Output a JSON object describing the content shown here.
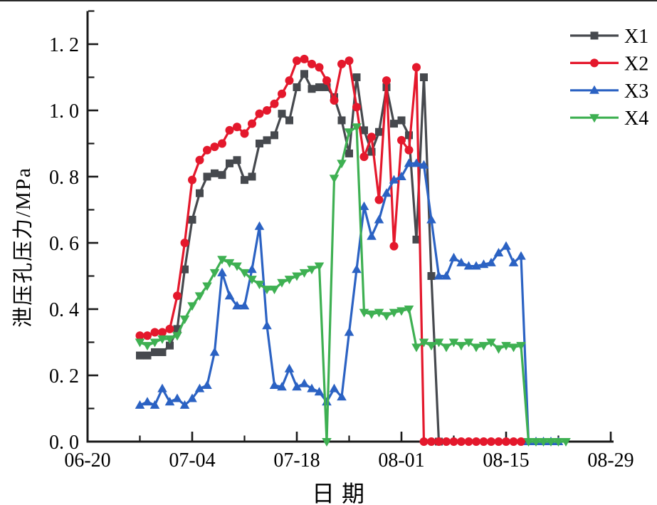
{
  "figure": {
    "background": "#ffffff",
    "axis_color": "#1a1a1a",
    "y_axis": {
      "title": "泄压孔压力/MPa",
      "tick_labels": [
        "0. 0",
        "0. 2",
        "0. 4",
        "0. 6",
        "0. 8",
        "1. 0",
        "1. 2"
      ],
      "min": 0,
      "max": 1.3,
      "major_step": 0.2,
      "minor_step": 0.1
    },
    "x_axis": {
      "title": "日期",
      "tick_labels": [
        "06-20",
        "07-04",
        "07-18",
        "08-01",
        "08-15",
        "08-29"
      ],
      "minor_tick_dates": [
        "06-27",
        "07-11",
        "07-25",
        "08-08",
        "08-22"
      ]
    },
    "legend": {
      "position": "top-right",
      "labels": [
        "X1",
        "X2",
        "X3",
        "X4"
      ]
    }
  },
  "chart_data": {
    "type": "line",
    "title": "",
    "xlabel": "日期",
    "ylabel": "泄压孔压力/MPa",
    "x_range": [
      "06-20",
      "08-29"
    ],
    "ylim": [
      0,
      1.3
    ],
    "grid": false,
    "legend_position": "top-right",
    "series": [
      {
        "name": "X1",
        "color": "#46494e",
        "marker": "square",
        "points": [
          [
            "06-27",
            0.26
          ],
          [
            "06-28",
            0.26
          ],
          [
            "06-29",
            0.27
          ],
          [
            "06-30",
            0.27
          ],
          [
            "07-01",
            0.29
          ],
          [
            "07-02",
            0.34
          ],
          [
            "07-03",
            0.52
          ],
          [
            "07-04",
            0.67
          ],
          [
            "07-05",
            0.75
          ],
          [
            "07-06",
            0.8
          ],
          [
            "07-07",
            0.81
          ],
          [
            "07-08",
            0.805
          ],
          [
            "07-09",
            0.84
          ],
          [
            "07-10",
            0.85
          ],
          [
            "07-11",
            0.79
          ],
          [
            "07-12",
            0.8
          ],
          [
            "07-13",
            0.9
          ],
          [
            "07-14",
            0.91
          ],
          [
            "07-15",
            0.925
          ],
          [
            "07-16",
            0.99
          ],
          [
            "07-17",
            0.97
          ],
          [
            "07-18",
            1.07
          ],
          [
            "07-19",
            1.11
          ],
          [
            "07-20",
            1.065
          ],
          [
            "07-21",
            1.07
          ],
          [
            "07-22",
            1.07
          ],
          [
            "07-23",
            1.04
          ],
          [
            "07-24",
            0.97
          ],
          [
            "07-25",
            0.87
          ],
          [
            "07-26",
            1.1
          ],
          [
            "07-27",
            0.94
          ],
          [
            "07-28",
            0.875
          ],
          [
            "07-29",
            0.935
          ],
          [
            "07-30",
            1.07
          ],
          [
            "07-31",
            0.96
          ],
          [
            "08-01",
            0.97
          ],
          [
            "08-02",
            0.925
          ],
          [
            "08-03",
            0.61
          ],
          [
            "08-04",
            1.1
          ],
          [
            "08-05",
            0.5
          ],
          [
            "08-06",
            0.0
          ]
        ]
      },
      {
        "name": "X2",
        "color": "#e4182c",
        "marker": "circle",
        "points": [
          [
            "06-27",
            0.32
          ],
          [
            "06-28",
            0.32
          ],
          [
            "06-29",
            0.33
          ],
          [
            "06-30",
            0.33
          ],
          [
            "07-01",
            0.34
          ],
          [
            "07-02",
            0.44
          ],
          [
            "07-03",
            0.6
          ],
          [
            "07-04",
            0.79
          ],
          [
            "07-05",
            0.85
          ],
          [
            "07-06",
            0.88
          ],
          [
            "07-07",
            0.89
          ],
          [
            "07-08",
            0.9
          ],
          [
            "07-09",
            0.94
          ],
          [
            "07-10",
            0.95
          ],
          [
            "07-11",
            0.93
          ],
          [
            "07-12",
            0.96
          ],
          [
            "07-13",
            0.99
          ],
          [
            "07-14",
            1.0
          ],
          [
            "07-15",
            1.02
          ],
          [
            "07-16",
            1.05
          ],
          [
            "07-17",
            1.09
          ],
          [
            "07-18",
            1.15
          ],
          [
            "07-19",
            1.155
          ],
          [
            "07-20",
            1.14
          ],
          [
            "07-21",
            1.13
          ],
          [
            "07-22",
            1.09
          ],
          [
            "07-23",
            1.03
          ],
          [
            "07-24",
            1.14
          ],
          [
            "07-25",
            1.15
          ],
          [
            "07-26",
            1.01
          ],
          [
            "07-27",
            0.86
          ],
          [
            "07-28",
            0.92
          ],
          [
            "07-29",
            0.73
          ],
          [
            "07-30",
            1.09
          ],
          [
            "07-31",
            0.59
          ],
          [
            "08-01",
            0.91
          ],
          [
            "08-02",
            0.88
          ],
          [
            "08-03",
            1.13
          ],
          [
            "08-04",
            0
          ],
          [
            "08-05",
            0
          ],
          [
            "08-06",
            0
          ],
          [
            "08-07",
            0
          ],
          [
            "08-08",
            0
          ],
          [
            "08-09",
            0
          ],
          [
            "08-10",
            0
          ],
          [
            "08-11",
            0
          ],
          [
            "08-12",
            0
          ],
          [
            "08-13",
            0
          ],
          [
            "08-14",
            0
          ],
          [
            "08-15",
            0
          ],
          [
            "08-16",
            0
          ],
          [
            "08-17",
            0
          ]
        ]
      },
      {
        "name": "X3",
        "color": "#2b62c3",
        "marker": "triangle-up",
        "points": [
          [
            "06-27",
            0.11
          ],
          [
            "06-28",
            0.12
          ],
          [
            "06-29",
            0.11
          ],
          [
            "06-30",
            0.16
          ],
          [
            "07-01",
            0.12
          ],
          [
            "07-02",
            0.13
          ],
          [
            "07-03",
            0.11
          ],
          [
            "07-04",
            0.13
          ],
          [
            "07-05",
            0.16
          ],
          [
            "07-06",
            0.17
          ],
          [
            "07-07",
            0.27
          ],
          [
            "07-08",
            0.51
          ],
          [
            "07-09",
            0.44
          ],
          [
            "07-10",
            0.41
          ],
          [
            "07-11",
            0.41
          ],
          [
            "07-12",
            0.52
          ],
          [
            "07-13",
            0.65
          ],
          [
            "07-14",
            0.35
          ],
          [
            "07-15",
            0.17
          ],
          [
            "07-16",
            0.165
          ],
          [
            "07-17",
            0.22
          ],
          [
            "07-18",
            0.165
          ],
          [
            "07-19",
            0.175
          ],
          [
            "07-20",
            0.16
          ],
          [
            "07-21",
            0.15
          ],
          [
            "07-22",
            0.12
          ],
          [
            "07-23",
            0.16
          ],
          [
            "07-24",
            0.135
          ],
          [
            "07-25",
            0.33
          ],
          [
            "07-26",
            0.52
          ],
          [
            "07-27",
            0.71
          ],
          [
            "07-28",
            0.62
          ],
          [
            "07-29",
            0.67
          ],
          [
            "07-30",
            0.75
          ],
          [
            "07-31",
            0.79
          ],
          [
            "08-01",
            0.8
          ],
          [
            "08-02",
            0.84
          ],
          [
            "08-03",
            0.84
          ],
          [
            "08-04",
            0.835
          ],
          [
            "08-05",
            0.67
          ],
          [
            "08-06",
            0.5
          ],
          [
            "08-07",
            0.5
          ],
          [
            "08-08",
            0.555
          ],
          [
            "08-09",
            0.54
          ],
          [
            "08-10",
            0.53
          ],
          [
            "08-11",
            0.53
          ],
          [
            "08-12",
            0.535
          ],
          [
            "08-13",
            0.54
          ],
          [
            "08-14",
            0.57
          ],
          [
            "08-15",
            0.59
          ],
          [
            "08-16",
            0.54
          ],
          [
            "08-17",
            0.56
          ],
          [
            "08-18",
            0
          ],
          [
            "08-19",
            0
          ],
          [
            "08-20",
            0
          ],
          [
            "08-21",
            0
          ],
          [
            "08-22",
            0
          ]
        ]
      },
      {
        "name": "X4",
        "color": "#3eb052",
        "marker": "triangle-down",
        "points": [
          [
            "06-27",
            0.3
          ],
          [
            "06-28",
            0.29
          ],
          [
            "06-29",
            0.3
          ],
          [
            "06-30",
            0.31
          ],
          [
            "07-01",
            0.31
          ],
          [
            "07-02",
            0.32
          ],
          [
            "07-03",
            0.37
          ],
          [
            "07-04",
            0.41
          ],
          [
            "07-05",
            0.44
          ],
          [
            "07-06",
            0.47
          ],
          [
            "07-07",
            0.51
          ],
          [
            "07-08",
            0.55
          ],
          [
            "07-09",
            0.54
          ],
          [
            "07-10",
            0.53
          ],
          [
            "07-11",
            0.51
          ],
          [
            "07-12",
            0.49
          ],
          [
            "07-13",
            0.475
          ],
          [
            "07-14",
            0.46
          ],
          [
            "07-15",
            0.46
          ],
          [
            "07-16",
            0.48
          ],
          [
            "07-17",
            0.49
          ],
          [
            "07-18",
            0.5
          ],
          [
            "07-19",
            0.51
          ],
          [
            "07-20",
            0.52
          ],
          [
            "07-21",
            0.53
          ],
          [
            "07-22",
            0.0
          ],
          [
            "07-23",
            0.795
          ],
          [
            "07-24",
            0.84
          ],
          [
            "07-25",
            0.935
          ],
          [
            "07-26",
            0.95
          ],
          [
            "07-27",
            0.39
          ],
          [
            "07-28",
            0.385
          ],
          [
            "07-29",
            0.39
          ],
          [
            "07-30",
            0.38
          ],
          [
            "07-31",
            0.39
          ],
          [
            "08-01",
            0.395
          ],
          [
            "08-02",
            0.4
          ],
          [
            "08-03",
            0.285
          ],
          [
            "08-04",
            0.3
          ],
          [
            "08-05",
            0.29
          ],
          [
            "08-06",
            0.3
          ],
          [
            "08-07",
            0.285
          ],
          [
            "08-08",
            0.3
          ],
          [
            "08-09",
            0.29
          ],
          [
            "08-10",
            0.3
          ],
          [
            "08-11",
            0.285
          ],
          [
            "08-12",
            0.29
          ],
          [
            "08-13",
            0.3
          ],
          [
            "08-14",
            0.28
          ],
          [
            "08-15",
            0.29
          ],
          [
            "08-16",
            0.285
          ],
          [
            "08-17",
            0.29
          ],
          [
            "08-18",
            0
          ],
          [
            "08-19",
            0
          ],
          [
            "08-20",
            0
          ],
          [
            "08-21",
            0
          ],
          [
            "08-22",
            0
          ],
          [
            "08-23",
            0
          ]
        ]
      }
    ]
  }
}
